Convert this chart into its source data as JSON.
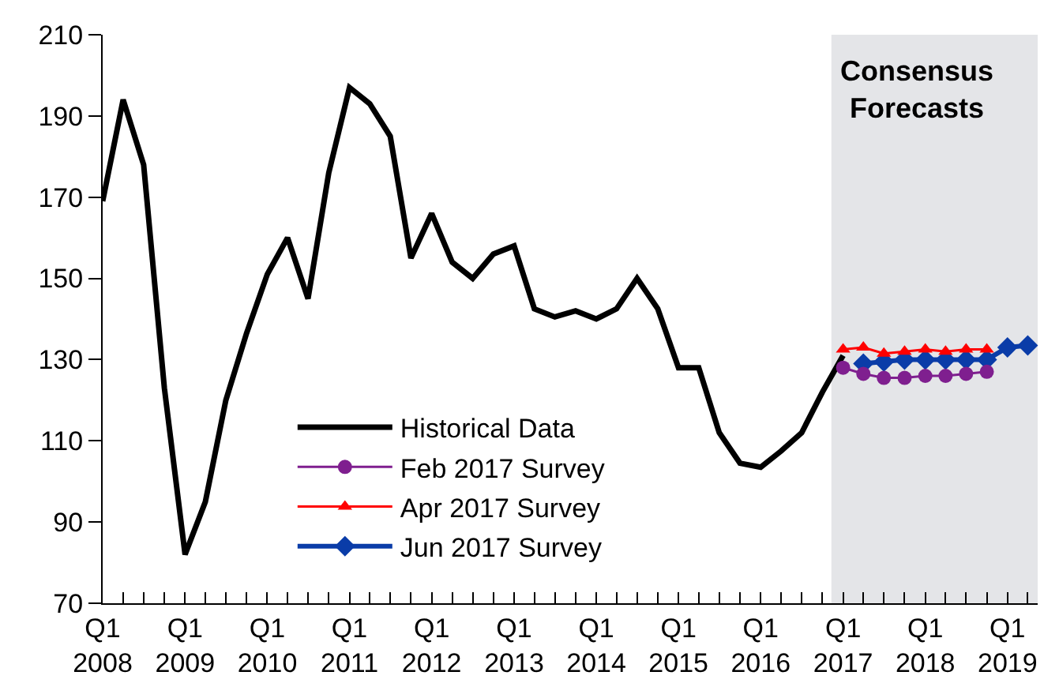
{
  "chart_data": {
    "type": "line",
    "series": [
      {
        "name": "Historical Data",
        "color": "#000000",
        "marker": "none",
        "x": [
          "2008-01",
          "2008-04",
          "2008-07",
          "2008-10",
          "2009-01",
          "2009-04",
          "2009-07",
          "2009-10",
          "2010-01",
          "2010-04",
          "2010-07",
          "2010-10",
          "2011-01",
          "2011-04",
          "2011-07",
          "2011-10",
          "2012-01",
          "2012-04",
          "2012-07",
          "2012-10",
          "2013-01",
          "2013-04",
          "2013-07",
          "2013-10",
          "2014-01",
          "2014-04",
          "2014-07",
          "2014-10",
          "2015-01",
          "2015-04",
          "2015-07",
          "2015-10",
          "2016-01",
          "2016-04",
          "2016-07",
          "2016-10",
          "2017-01"
        ],
        "values": [
          169,
          194,
          178,
          123,
          82,
          95,
          120,
          136.5,
          151,
          160,
          145,
          176,
          197,
          193,
          185,
          155,
          166,
          154,
          150,
          156,
          158,
          142.5,
          140.5,
          142,
          140,
          142.5,
          150,
          142.5,
          128,
          128,
          112,
          104.5,
          103.5,
          107.5,
          112,
          122,
          131
        ]
      },
      {
        "name": "Feb 2017 Survey",
        "color": "#7f1f8f",
        "marker": "circle",
        "x": [
          "2017-01",
          "2017-04",
          "2017-07",
          "2017-10",
          "2018-01",
          "2018-04",
          "2018-07",
          "2018-10"
        ],
        "values": [
          128,
          126.5,
          125.5,
          125.5,
          126,
          126,
          126.5,
          127
        ]
      },
      {
        "name": "Apr 2017 Survey",
        "color": "#ff0000",
        "marker": "triangle",
        "x": [
          "2017-01",
          "2017-04",
          "2017-07",
          "2017-10",
          "2018-01",
          "2018-04",
          "2018-07",
          "2018-10"
        ],
        "values": [
          132.5,
          133,
          131.5,
          132,
          132.5,
          132,
          132.5,
          132.5
        ]
      },
      {
        "name": "Jun 2017 Survey",
        "color": "#0a3ca8",
        "marker": "diamond",
        "x": [
          "2017-04",
          "2017-07",
          "2017-10",
          "2018-01",
          "2018-04",
          "2018-07",
          "2018-10",
          "2019-01",
          "2019-04"
        ],
        "values": [
          129,
          129.5,
          130,
          130,
          130,
          130,
          130,
          133,
          133.5
        ]
      }
    ],
    "xlim": [
      "2008-01-01",
      "2019-05-15"
    ],
    "xticks": [
      {
        "value": "2008-01",
        "label": "Q1\n2008"
      },
      {
        "value": "2008-04",
        "label": null
      },
      {
        "value": "2008-07",
        "label": null
      },
      {
        "value": "2008-10",
        "label": null
      },
      {
        "value": "2009-01",
        "label": "Q1\n2009"
      },
      {
        "value": "2009-04",
        "label": null
      },
      {
        "value": "2009-07",
        "label": null
      },
      {
        "value": "2009-10",
        "label": null
      },
      {
        "value": "2010-01",
        "label": "Q1\n2010"
      },
      {
        "value": "2010-04",
        "label": null
      },
      {
        "value": "2010-07",
        "label": null
      },
      {
        "value": "2010-10",
        "label": null
      },
      {
        "value": "2011-01",
        "label": "Q1\n2011"
      },
      {
        "value": "2011-04",
        "label": null
      },
      {
        "value": "2011-07",
        "label": null
      },
      {
        "value": "2011-10",
        "label": null
      },
      {
        "value": "2012-01",
        "label": "Q1\n2012"
      },
      {
        "value": "2012-04",
        "label": null
      },
      {
        "value": "2012-07",
        "label": null
      },
      {
        "value": "2012-10",
        "label": null
      },
      {
        "value": "2013-01",
        "label": "Q1\n2013"
      },
      {
        "value": "2013-04",
        "label": null
      },
      {
        "value": "2013-07",
        "label": null
      },
      {
        "value": "2013-10",
        "label": null
      },
      {
        "value": "2014-01",
        "label": "Q1\n2014"
      },
      {
        "value": "2014-04",
        "label": null
      },
      {
        "value": "2014-07",
        "label": null
      },
      {
        "value": "2014-10",
        "label": null
      },
      {
        "value": "2015-01",
        "label": "Q1\n2015"
      },
      {
        "value": "2015-04",
        "label": null
      },
      {
        "value": "2015-07",
        "label": null
      },
      {
        "value": "2015-10",
        "label": null
      },
      {
        "value": "2016-01",
        "label": "Q1\n2016"
      },
      {
        "value": "2016-04",
        "label": null
      },
      {
        "value": "2016-07",
        "label": null
      },
      {
        "value": "2016-10",
        "label": null
      },
      {
        "value": "2017-01",
        "label": "Q1\n2017"
      },
      {
        "value": "2017-04",
        "label": null
      },
      {
        "value": "2017-07",
        "label": null
      },
      {
        "value": "2017-10",
        "label": null
      },
      {
        "value": "2018-01",
        "label": "Q1\n2018"
      },
      {
        "value": "2018-04",
        "label": null
      },
      {
        "value": "2018-07",
        "label": null
      },
      {
        "value": "2018-10",
        "label": null
      },
      {
        "value": "2019-01",
        "label": "Q1\n2019"
      },
      {
        "value": "2019-04",
        "label": null
      }
    ],
    "ylim": [
      70,
      210
    ],
    "yticks": [
      70,
      90,
      110,
      130,
      150,
      170,
      190,
      210
    ],
    "bands": [
      {
        "axis": "x",
        "from": "2016-11-10",
        "to": "2019-05-15",
        "label": "Consensus\nForecasts",
        "color": "#e4e5e8"
      }
    ],
    "grid": false,
    "legend": "bottom left"
  }
}
